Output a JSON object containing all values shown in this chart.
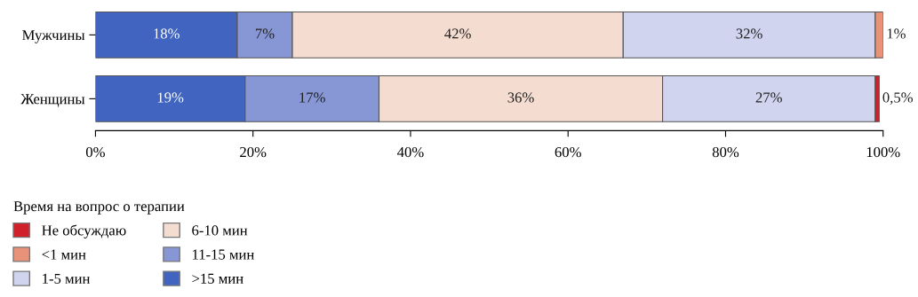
{
  "chart_data": {
    "type": "bar",
    "orientation": "horizontal",
    "stacked": true,
    "categories": [
      "Мужчины",
      "Женщины"
    ],
    "series": [
      {
        "name": ">15 мин",
        "color": "#4064c0",
        "values": [
          18,
          19
        ],
        "value_labels": [
          "18%",
          "19%"
        ]
      },
      {
        "name": "11-15 мин",
        "color": "#8796d4",
        "values": [
          7,
          17
        ],
        "value_labels": [
          "7%",
          "17%"
        ]
      },
      {
        "name": "6-10 мин",
        "color": "#f5dcd0",
        "values": [
          42,
          36
        ],
        "value_labels": [
          "42%",
          "36%"
        ]
      },
      {
        "name": "1-5 мин",
        "color": "#d0d4ee",
        "values": [
          32,
          27
        ],
        "value_labels": [
          "32%",
          "27%"
        ]
      },
      {
        "name": "<1 мин",
        "color": "#e8927a",
        "values": [
          1,
          null
        ],
        "value_labels": [
          "1%",
          null
        ]
      },
      {
        "name": "Не обсуждаю",
        "color": "#d0202a",
        "values": [
          null,
          0.5
        ],
        "value_labels": [
          null,
          "0,5%"
        ]
      }
    ],
    "xlim": [
      0,
      100
    ],
    "xticks": [
      {
        "value": 0,
        "label": "0%"
      },
      {
        "value": 20,
        "label": "20%"
      },
      {
        "value": 40,
        "label": "40%"
      },
      {
        "value": 60,
        "label": "60%"
      },
      {
        "value": 80,
        "label": "80%"
      },
      {
        "value": 100,
        "label": "100%"
      }
    ],
    "legend": "bottom",
    "legend_title": "Время на вопрос о терапии",
    "grid": false
  }
}
